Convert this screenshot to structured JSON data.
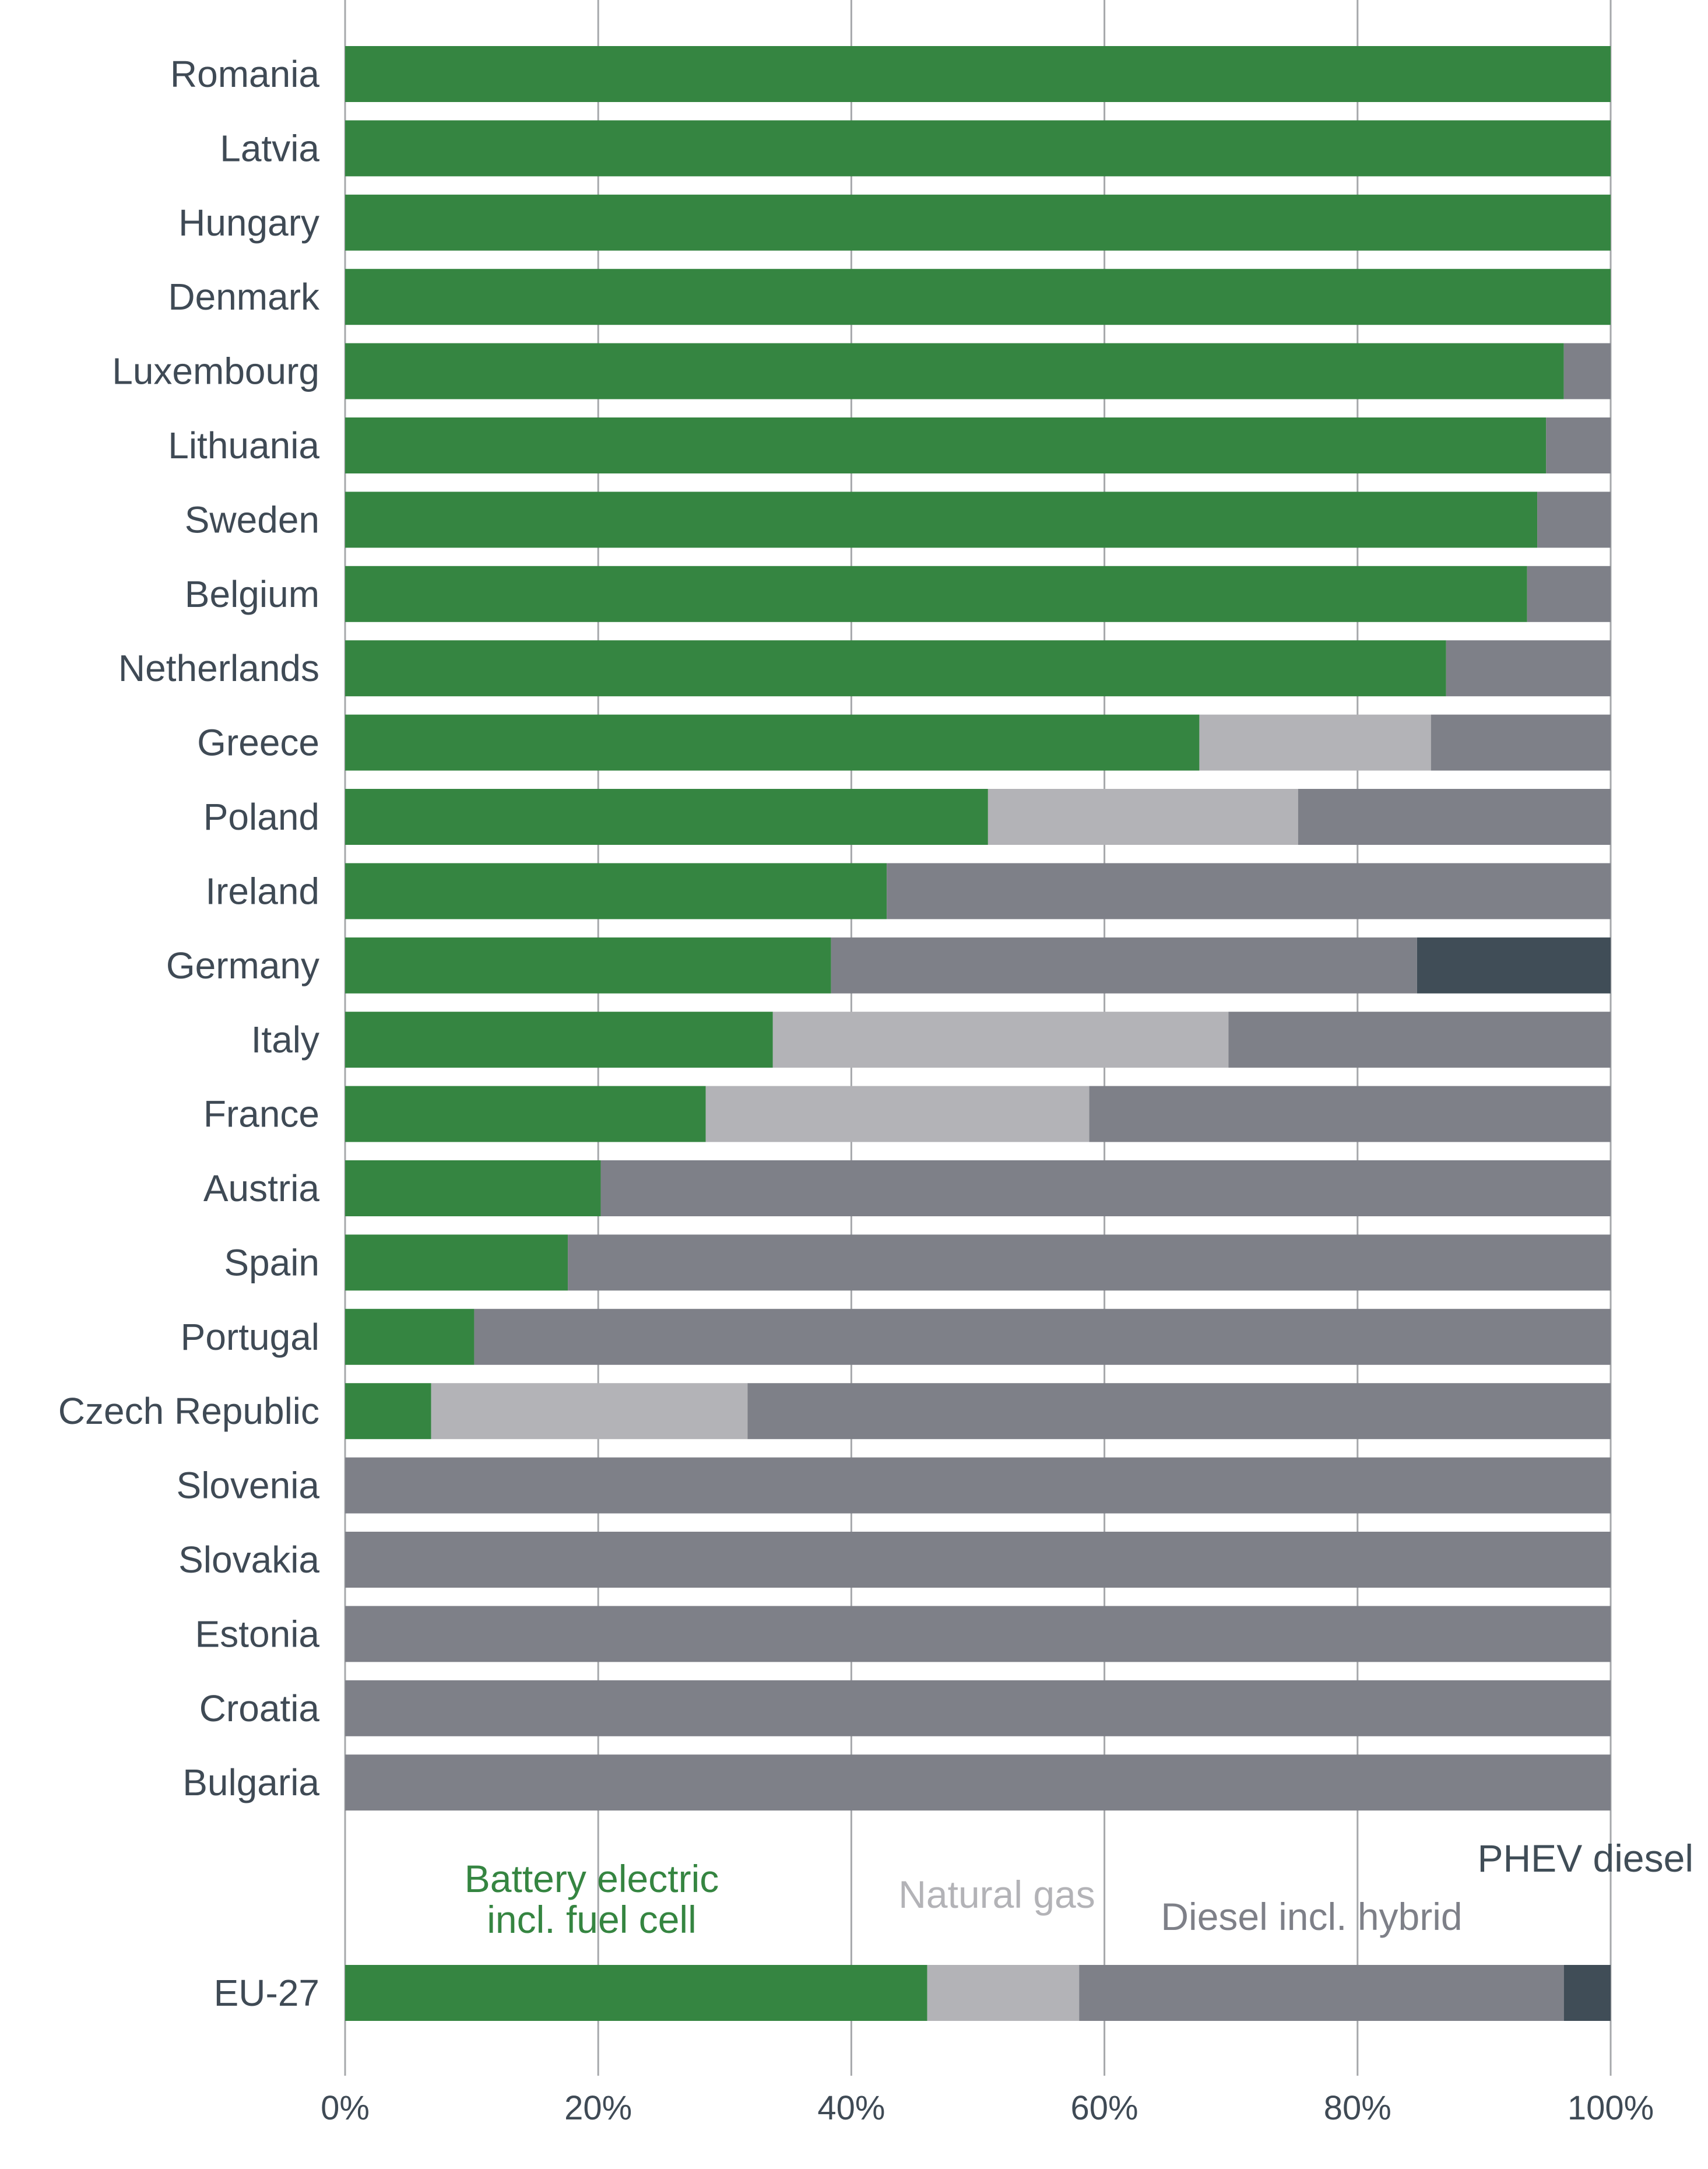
{
  "chart_data": {
    "type": "bar",
    "orientation": "horizontal",
    "stacked": true,
    "categories": [
      "Romania",
      "Latvia",
      "Hungary",
      "Denmark",
      "Luxembourg",
      "Lithuania",
      "Sweden",
      "Belgium",
      "Netherlands",
      "Greece",
      "Poland",
      "Ireland",
      "Germany",
      "Italy",
      "France",
      "Austria",
      "Spain",
      "Portugal",
      "Czech Republic",
      "Slovenia",
      "Slovakia",
      "Estonia",
      "Croatia",
      "Bulgaria"
    ],
    "series": [
      {
        "name": "Battery electric incl. fuel cell",
        "legend_lines": [
          "Battery electric",
          "incl. fuel cell"
        ],
        "color": "#358541",
        "values": [
          100,
          100,
          100,
          100,
          96.3,
          94.9,
          94.2,
          93.4,
          87,
          67.5,
          50.8,
          42.8,
          38.4,
          33.8,
          28.5,
          20.2,
          17.6,
          10.2,
          6.8,
          0,
          0,
          0,
          0,
          0
        ]
      },
      {
        "name": "Natural gas",
        "legend_lines": [
          "Natural gas"
        ],
        "color": "#b3b3b7",
        "values": [
          0,
          0,
          0,
          0,
          0,
          0,
          0,
          0,
          0,
          18.3,
          24.5,
          0,
          0,
          36,
          30.3,
          0,
          0,
          0,
          25,
          0,
          0,
          0,
          0,
          0
        ]
      },
      {
        "name": "Diesel incl. hybrid",
        "legend_lines": [
          "Diesel incl. hybrid"
        ],
        "color": "#7e8088",
        "values": [
          0,
          0,
          0,
          0,
          3.7,
          5.1,
          5.8,
          6.6,
          13,
          14.2,
          24.7,
          57.2,
          46.3,
          30.2,
          41.2,
          79.8,
          82.4,
          89.8,
          68.2,
          100,
          100,
          100,
          100,
          100
        ]
      },
      {
        "name": "PHEV diesel",
        "legend_lines": [
          "PHEV diesel"
        ],
        "color": "#404d57",
        "values": [
          0,
          0,
          0,
          0,
          0,
          0,
          0,
          0,
          0,
          0,
          0,
          0,
          15.3,
          0,
          0,
          0,
          0,
          0,
          0,
          0,
          0,
          0,
          0,
          0
        ]
      }
    ],
    "summary": {
      "category": "EU-27",
      "values": [
        46,
        12,
        38.3,
        3.7
      ]
    },
    "xaxis": {
      "ticks": [
        "0%",
        "20%",
        "40%",
        "60%",
        "80%",
        "100%"
      ],
      "tick_values": [
        0,
        20,
        40,
        60,
        80,
        100
      ],
      "range": [
        0,
        100
      ]
    },
    "title": "",
    "xlabel": "",
    "ylabel": "",
    "grid": "vertical",
    "legend": "inline, between main chart and EU-27 bar"
  }
}
